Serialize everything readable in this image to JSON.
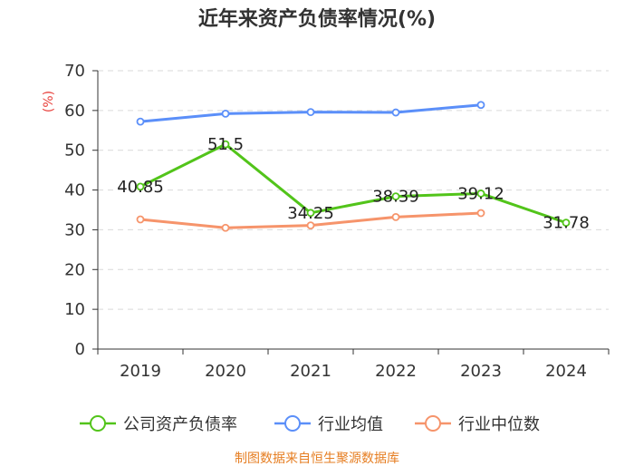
{
  "chart_data": {
    "type": "line",
    "title": "近年来资产负债率情况(%)",
    "ylabel": "(%)",
    "xlabel": "",
    "ylim": [
      0,
      70
    ],
    "yticks": [
      0,
      10,
      20,
      30,
      40,
      50,
      60,
      70
    ],
    "categories": [
      "2019",
      "2020",
      "2021",
      "2022",
      "2023",
      "2024"
    ],
    "grid": true,
    "legend_position": "bottom",
    "series": [
      {
        "name": "公司资产负债率",
        "color": "#52c41a",
        "values": [
          40.85,
          51.5,
          34.25,
          38.39,
          39.12,
          31.78
        ],
        "labels": [
          "40.85",
          "51.5",
          "34.25",
          "38.39",
          "39.12",
          "31.78"
        ]
      },
      {
        "name": "行业均值",
        "color": "#5b8ff9",
        "values": [
          57.2,
          59.2,
          59.6,
          59.5,
          61.4,
          null
        ]
      },
      {
        "name": "行业中位数",
        "color": "#f6946b",
        "values": [
          32.6,
          30.5,
          31.1,
          33.2,
          34.2,
          null
        ]
      }
    ],
    "unit_color": "#e8413c",
    "source": "制图数据来自恒生聚源数据库",
    "source_color": "#e67e22"
  }
}
